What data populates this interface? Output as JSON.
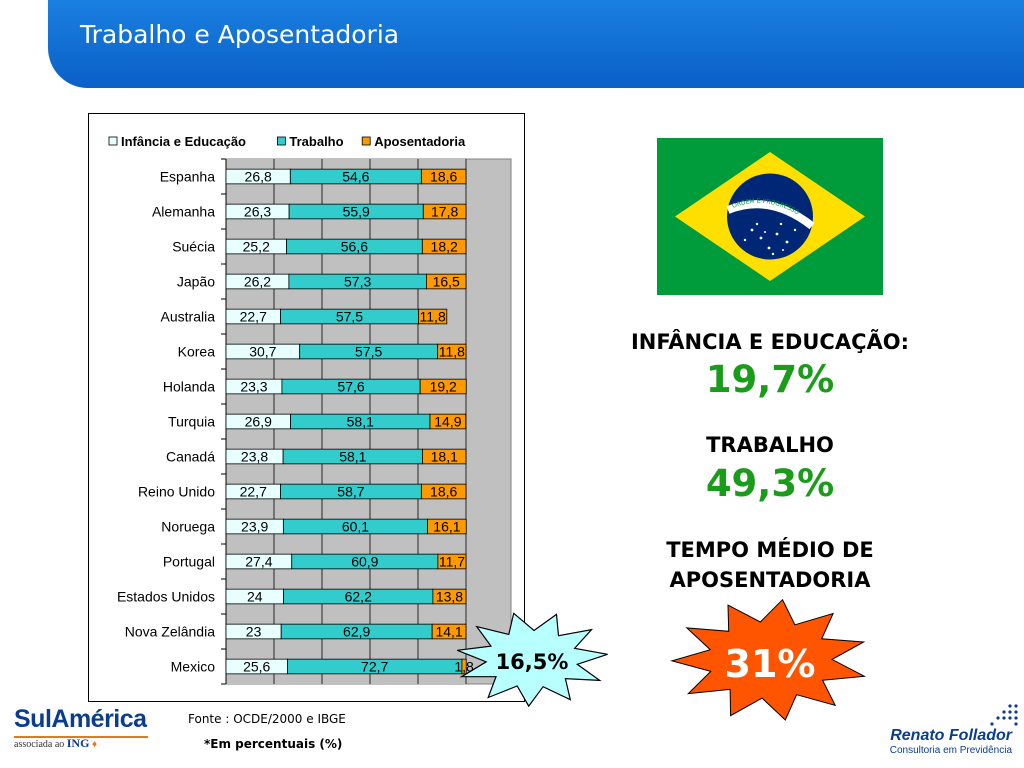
{
  "header": {
    "title": "Trabalho e Aposentadoria"
  },
  "chart_data": {
    "type": "bar",
    "orientation": "horizontal",
    "stacked": true,
    "categories": [
      "Espanha",
      "Alemanha",
      "Suécia",
      "Japão",
      "Australia",
      "Korea",
      "Holanda",
      "Turquia",
      "Canadá",
      "Reino Unido",
      "Noruega",
      "Portugal",
      "Estados Unidos",
      "Nova Zelândia",
      "Mexico"
    ],
    "series": [
      {
        "name": "Infância e Educação",
        "color": "#e8ffff",
        "values": [
          26.8,
          26.3,
          25.2,
          26.2,
          22.7,
          30.7,
          23.3,
          26.9,
          23.8,
          22.7,
          23.9,
          27.4,
          24,
          23,
          25.6
        ],
        "labels": [
          "26,8",
          "26,3",
          "25,2",
          "26,2",
          "22,7",
          "30,7",
          "23,3",
          "26,9",
          "23,8",
          "22,7",
          "23,9",
          "27,4",
          "24",
          "23",
          "25,6"
        ]
      },
      {
        "name": "Trabalho",
        "color": "#33cccc",
        "values": [
          54.6,
          55.9,
          56.6,
          57.3,
          57.5,
          57.5,
          57.6,
          58.1,
          58.1,
          58.7,
          60.1,
          60.9,
          62.2,
          62.9,
          72.7
        ],
        "labels": [
          "54,6",
          "55,9",
          "56,6",
          "57,3",
          "57,5",
          "57,5",
          "57,6",
          "58,1",
          "58,1",
          "58,7",
          "60,1",
          "60,9",
          "62,2",
          "62,9",
          "72,7"
        ]
      },
      {
        "name": "Aposentadoria",
        "color": "#ff9900",
        "values": [
          18.6,
          17.8,
          18.2,
          16.5,
          11.8,
          11.8,
          19.2,
          14.9,
          18.1,
          18.6,
          16.1,
          11.7,
          13.8,
          14.1,
          1.8
        ],
        "labels": [
          "18,6",
          "17,8",
          "18,2",
          "16,5",
          "11,8",
          "11,8",
          "19,2",
          "14,9",
          "18,1",
          "18,6",
          "16,1",
          "11,7",
          "13,8",
          "14,1",
          "1,8"
        ]
      }
    ],
    "xlim": [
      0,
      100
    ],
    "grid": true,
    "legend": "top",
    "plot_background": "#c0c0c0"
  },
  "source": {
    "label": "Fonte :",
    "value": "OCDE/2000 e IBGE"
  },
  "note": "*Em percentuais (%)",
  "flag": {
    "motto": "ORDEM E PROGRESSO"
  },
  "stats": {
    "infancia_label": "INFÂNCIA E EDUCAÇÃO:",
    "infancia_value": "19,7%",
    "trabalho_label": "TRABALHO",
    "trabalho_value": "49,3%",
    "tempo_label_line1": "TEMPO MÉDIO DE",
    "tempo_label_line2": "APOSENTADORIA",
    "aposentadoria_value": "31%",
    "burst_value": "16,5%"
  },
  "logos": {
    "sulamerica_name": "SulAmérica",
    "sulamerica_sub": "associada ao",
    "sulamerica_partner": "ING",
    "renato_name": "Renato Follador",
    "renato_sub": "Consultoria em Previdência"
  },
  "colors": {
    "header": "#0a60c8",
    "stat_value": "#1a9b1a",
    "burst_blue": "#b8ffff",
    "burst_orange": "#ff5500"
  }
}
